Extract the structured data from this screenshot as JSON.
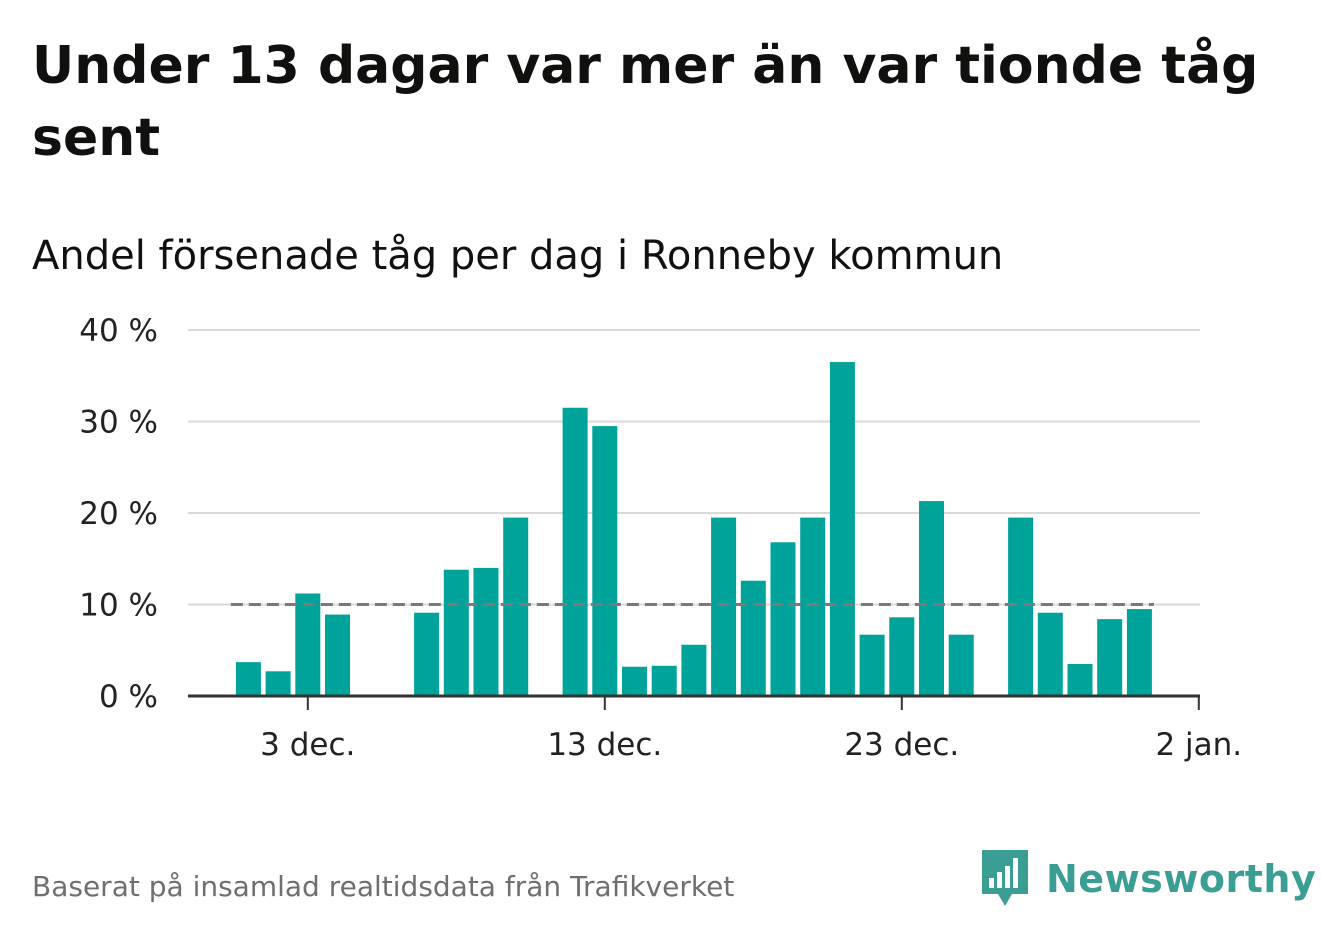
{
  "title": "Under 13 dagar var mer än var tionde tåg sent",
  "subtitle": "Andel försenade tåg per dag i Ronneby kommun",
  "footer": "Baserat på insamlad realtidsdata från Trafikverket",
  "brand": "Newsworthy",
  "colors": {
    "bar": "#00a39a",
    "reference": "#7a7a7e",
    "grid": "#d9d9d9",
    "axis": "#333333",
    "brand": "#3a9e94"
  },
  "chart_data": {
    "type": "bar",
    "x": [
      "2022-12-01",
      "2022-12-02",
      "2022-12-03",
      "2022-12-04",
      "2022-12-05",
      "2022-12-06",
      "2022-12-07",
      "2022-12-08",
      "2022-12-09",
      "2022-12-10",
      "2022-12-11",
      "2022-12-12",
      "2022-12-13",
      "2022-12-14",
      "2022-12-15",
      "2022-12-16",
      "2022-12-17",
      "2022-12-18",
      "2022-12-19",
      "2022-12-20",
      "2022-12-21",
      "2022-12-22",
      "2022-12-23",
      "2022-12-24",
      "2022-12-25",
      "2022-12-26",
      "2022-12-27",
      "2022-12-28",
      "2022-12-29",
      "2022-12-30",
      "2022-12-31"
    ],
    "values": [
      3.7,
      2.7,
      11.2,
      8.9,
      null,
      null,
      9.1,
      13.8,
      14.0,
      19.5,
      null,
      31.5,
      29.5,
      3.2,
      3.3,
      5.6,
      19.5,
      12.6,
      16.8,
      19.5,
      36.5,
      6.7,
      8.6,
      21.3,
      6.7,
      null,
      19.5,
      9.1,
      3.5,
      8.4,
      9.5
    ],
    "reference_line": 10,
    "ylim": [
      0,
      40
    ],
    "yticks": [
      0,
      10,
      20,
      30,
      40
    ],
    "ytick_labels": [
      "0 %",
      "10 %",
      "20 %",
      "30 %",
      "40 %"
    ],
    "xticks": [
      "2022-12-03",
      "2022-12-13",
      "2022-12-23",
      "2023-01-02"
    ],
    "xtick_labels": [
      "3 dec.",
      "13 dec.",
      "23 dec.",
      "2 jan."
    ],
    "grid": true
  }
}
